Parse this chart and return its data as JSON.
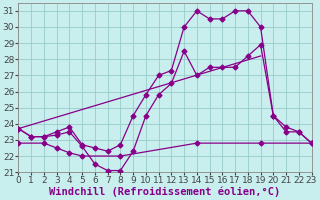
{
  "xlabel": "Windchill (Refroidissement éolien,°C)",
  "bg_color": "#c8eeee",
  "line_color": "#880088",
  "grid_color": "#99cccc",
  "xlim": [
    0,
    23
  ],
  "ylim": [
    21,
    31.5
  ],
  "xticks": [
    0,
    1,
    2,
    3,
    4,
    5,
    6,
    7,
    8,
    9,
    10,
    11,
    12,
    13,
    14,
    15,
    16,
    17,
    18,
    19,
    20,
    21,
    22,
    23
  ],
  "yticks": [
    21,
    22,
    23,
    24,
    25,
    26,
    27,
    28,
    29,
    30,
    31
  ],
  "line1_x": [
    0,
    1,
    2,
    3,
    4,
    5,
    6,
    7,
    8,
    9,
    10,
    11,
    12,
    13,
    14,
    15,
    16,
    17,
    18,
    19,
    20,
    21,
    22,
    23
  ],
  "line1_y": [
    23.7,
    23.2,
    23.2,
    23.5,
    23.8,
    22.7,
    22.5,
    22.3,
    22.7,
    24.5,
    25.8,
    27.0,
    27.3,
    30.0,
    31.0,
    30.5,
    30.5,
    31.0,
    31.0,
    30.0,
    24.5,
    23.8,
    23.5,
    22.8
  ],
  "line2_x": [
    0,
    1,
    2,
    3,
    4,
    5,
    6,
    7,
    8,
    9,
    10,
    11,
    12,
    13,
    14,
    15,
    16,
    17,
    18,
    19,
    20,
    21,
    22,
    23
  ],
  "line2_y": [
    23.7,
    23.2,
    23.2,
    23.3,
    23.5,
    22.6,
    21.5,
    21.1,
    21.1,
    22.3,
    24.5,
    25.8,
    26.5,
    28.5,
    27.0,
    27.5,
    27.5,
    27.5,
    28.2,
    28.9,
    24.5,
    23.5,
    23.5,
    22.8
  ],
  "line3_x": [
    0,
    19
  ],
  "line3_y": [
    23.7,
    28.2
  ],
  "line4_x": [
    0,
    2,
    3,
    4,
    5,
    8,
    14,
    19,
    23
  ],
  "line4_y": [
    22.8,
    22.8,
    22.5,
    22.2,
    22.0,
    22.0,
    22.8,
    22.8,
    22.8
  ],
  "tick_fontsize": 6.5,
  "xlabel_fontsize": 7.5
}
